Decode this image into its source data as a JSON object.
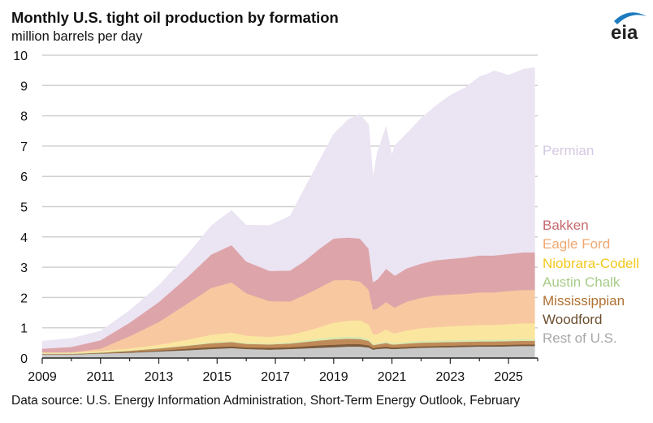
{
  "title": "Monthly U.S. tight oil production by formation",
  "subtitle": "million  barrels per day",
  "source": "Data source: U.S. Energy Information Administration,  Short-Term Energy Outlook, February",
  "logo_text": "eia",
  "colors": {
    "grid": "#d0d0d0",
    "axis": "#222222",
    "logo_blue": "#1b7bbf"
  },
  "chart_data": {
    "type": "area",
    "stacked": true,
    "xlim": [
      2009,
      2026
    ],
    "ylim": [
      0,
      10
    ],
    "x_ticks": [
      "2009",
      "2011",
      "2013",
      "2015",
      "2017",
      "2019",
      "2021",
      "2023",
      "2025"
    ],
    "y_ticks": [
      "0",
      "1",
      "2",
      "3",
      "4",
      "5",
      "6",
      "7",
      "8",
      "9",
      "10"
    ],
    "grid": "horizontal",
    "legend": "right-inline",
    "x": [
      2009.0,
      2010.0,
      2011.0,
      2012.0,
      2013.0,
      2014.0,
      2014.8,
      2015.5,
      2016.0,
      2016.8,
      2017.5,
      2018.0,
      2018.5,
      2019.0,
      2019.5,
      2019.9,
      2020.2,
      2020.35,
      2020.5,
      2020.8,
      2021.0,
      2021.1,
      2021.5,
      2022.0,
      2022.5,
      2023.0,
      2023.5,
      2024.0,
      2024.3,
      2024.5,
      2025.0,
      2025.5,
      2025.9
    ],
    "series": [
      {
        "name": "Rest of U.S.",
        "color": "#c8c8c8",
        "label_color": "#a8a8a8",
        "values": [
          0.12,
          0.12,
          0.15,
          0.18,
          0.22,
          0.26,
          0.3,
          0.33,
          0.3,
          0.28,
          0.3,
          0.32,
          0.34,
          0.36,
          0.38,
          0.38,
          0.35,
          0.28,
          0.3,
          0.32,
          0.3,
          0.3,
          0.32,
          0.34,
          0.35,
          0.36,
          0.37,
          0.38,
          0.38,
          0.38,
          0.39,
          0.4,
          0.4
        ]
      },
      {
        "name": "Woodford",
        "color": "#7a5a3a",
        "label_color": "#6b4e2e",
        "values": [
          0.01,
          0.01,
          0.01,
          0.02,
          0.03,
          0.05,
          0.06,
          0.06,
          0.05,
          0.06,
          0.06,
          0.07,
          0.08,
          0.08,
          0.08,
          0.08,
          0.07,
          0.05,
          0.05,
          0.06,
          0.05,
          0.05,
          0.05,
          0.05,
          0.05,
          0.05,
          0.05,
          0.05,
          0.05,
          0.05,
          0.05,
          0.05,
          0.05
        ]
      },
      {
        "name": "Mississippian",
        "color": "#c08a58",
        "label_color": "#b07030",
        "values": [
          0.01,
          0.01,
          0.02,
          0.04,
          0.07,
          0.1,
          0.13,
          0.14,
          0.12,
          0.11,
          0.12,
          0.14,
          0.16,
          0.18,
          0.18,
          0.17,
          0.15,
          0.1,
          0.1,
          0.12,
          0.1,
          0.1,
          0.11,
          0.12,
          0.12,
          0.12,
          0.12,
          0.12,
          0.12,
          0.12,
          0.12,
          0.12,
          0.12
        ]
      },
      {
        "name": "Austin Chalk",
        "color": "#d8e8b0",
        "label_color": "#a8cc88",
        "values": [
          0.02,
          0.02,
          0.02,
          0.02,
          0.02,
          0.02,
          0.03,
          0.03,
          0.03,
          0.03,
          0.04,
          0.05,
          0.06,
          0.07,
          0.07,
          0.07,
          0.06,
          0.04,
          0.04,
          0.05,
          0.04,
          0.04,
          0.05,
          0.06,
          0.06,
          0.06,
          0.06,
          0.06,
          0.06,
          0.06,
          0.06,
          0.06,
          0.06
        ]
      },
      {
        "name": "Niobrara-Codell",
        "color": "#fbe6a0",
        "label_color": "#f2c81e",
        "values": [
          0.02,
          0.02,
          0.03,
          0.06,
          0.1,
          0.18,
          0.25,
          0.28,
          0.24,
          0.22,
          0.25,
          0.3,
          0.38,
          0.48,
          0.52,
          0.55,
          0.48,
          0.32,
          0.3,
          0.4,
          0.35,
          0.33,
          0.38,
          0.42,
          0.44,
          0.46,
          0.47,
          0.48,
          0.48,
          0.48,
          0.5,
          0.52,
          0.52
        ]
      },
      {
        "name": "Eagle Ford",
        "color": "#f8c9a0",
        "label_color": "#f0a870",
        "values": [
          0.01,
          0.01,
          0.08,
          0.4,
          0.75,
          1.2,
          1.55,
          1.66,
          1.4,
          1.18,
          1.1,
          1.2,
          1.3,
          1.4,
          1.35,
          1.28,
          1.15,
          0.8,
          0.85,
          0.9,
          0.88,
          0.85,
          0.95,
          1.0,
          1.05,
          1.05,
          1.05,
          1.08,
          1.08,
          1.08,
          1.1,
          1.1,
          1.1
        ]
      },
      {
        "name": "Bakken",
        "color": "#dda5aa",
        "label_color": "#c66b70",
        "values": [
          0.12,
          0.18,
          0.28,
          0.45,
          0.66,
          0.88,
          1.1,
          1.23,
          1.05,
          1.0,
          1.02,
          1.12,
          1.28,
          1.38,
          1.4,
          1.42,
          1.35,
          0.92,
          0.95,
          1.1,
          1.08,
          1.05,
          1.1,
          1.13,
          1.16,
          1.18,
          1.2,
          1.22,
          1.22,
          1.22,
          1.22,
          1.24,
          1.24
        ]
      },
      {
        "name": "Permian",
        "color": "#ebe4f3",
        "label_color": "#d5c9e2",
        "values": [
          0.25,
          0.28,
          0.3,
          0.4,
          0.55,
          0.75,
          0.95,
          1.15,
          1.2,
          1.5,
          1.8,
          2.4,
          2.9,
          3.45,
          3.9,
          4.1,
          4.1,
          3.45,
          4.2,
          4.7,
          3.9,
          4.3,
          4.45,
          4.8,
          5.1,
          5.4,
          5.6,
          5.9,
          6.0,
          6.1,
          5.9,
          6.05,
          6.1
        ]
      }
    ]
  }
}
